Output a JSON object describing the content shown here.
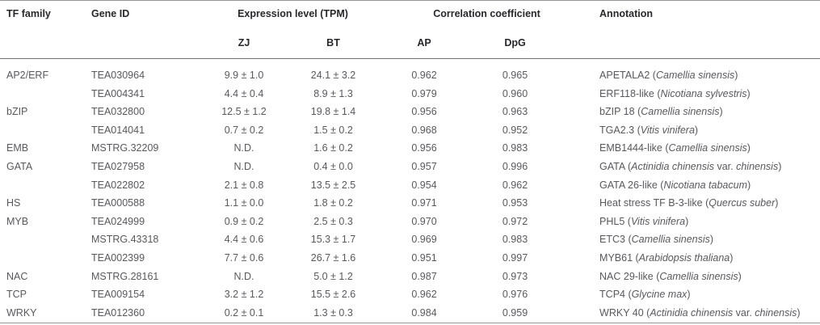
{
  "colors": {
    "background": "#ffffff",
    "header_text": "#28282b",
    "body_text": "#58595b",
    "rule_outer": "#939598",
    "rule_header": "#6f7173",
    "rule_group_underline": "#9b9da0"
  },
  "table": {
    "headers": {
      "tf_family": "TF family",
      "gene_id": "Gene ID",
      "expression_group": "Expression level (TPM)",
      "zj": "ZJ",
      "bt": "BT",
      "correlation_group": "Correlation coefficient",
      "ap": "AP",
      "dpg": "DpG",
      "annotation": "Annotation"
    },
    "rows": [
      {
        "family": "AP2/ERF",
        "gene": "TEA030964",
        "zj": "9.9 ± 1.0",
        "bt": "24.1 ± 3.2",
        "ap": "0.962",
        "dpg": "0.965",
        "annotation": [
          {
            "text": "APETALA2 (",
            "italic": false
          },
          {
            "text": "Camellia sinensis",
            "italic": true
          },
          {
            "text": ")",
            "italic": false
          }
        ]
      },
      {
        "family": "",
        "gene": "TEA004341",
        "zj": "4.4 ± 0.4",
        "bt": "8.9 ± 1.3",
        "ap": "0.979",
        "dpg": "0.960",
        "annotation": [
          {
            "text": "ERF118-like (",
            "italic": false
          },
          {
            "text": "Nicotiana sylvestris",
            "italic": true
          },
          {
            "text": ")",
            "italic": false
          }
        ]
      },
      {
        "family": "bZIP",
        "gene": "TEA032800",
        "zj": "12.5 ± 1.2",
        "bt": "19.8 ± 1.4",
        "ap": "0.956",
        "dpg": "0.963",
        "annotation": [
          {
            "text": "bZIP 18 (",
            "italic": false
          },
          {
            "text": "Camellia sinensis",
            "italic": true
          },
          {
            "text": ")",
            "italic": false
          }
        ]
      },
      {
        "family": "",
        "gene": "TEA014041",
        "zj": "0.7 ± 0.2",
        "bt": "1.5 ± 0.2",
        "ap": "0.968",
        "dpg": "0.952",
        "annotation": [
          {
            "text": "TGA2.3 (",
            "italic": false
          },
          {
            "text": "Vitis vinifera",
            "italic": true
          },
          {
            "text": ")",
            "italic": false
          }
        ]
      },
      {
        "family": "EMB",
        "gene": "MSTRG.32209",
        "zj": "N.D.",
        "bt": "1.6 ± 0.2",
        "ap": "0.956",
        "dpg": "0.983",
        "annotation": [
          {
            "text": "EMB1444-like (",
            "italic": false
          },
          {
            "text": "Camellia sinensis",
            "italic": true
          },
          {
            "text": ")",
            "italic": false
          }
        ]
      },
      {
        "family": "GATA",
        "gene": "TEA027958",
        "zj": "N.D.",
        "bt": "0.4 ± 0.0",
        "ap": "0.957",
        "dpg": "0.996",
        "annotation": [
          {
            "text": "GATA (",
            "italic": false
          },
          {
            "text": "Actinidia chinensis",
            "italic": true
          },
          {
            "text": " var. ",
            "italic": false
          },
          {
            "text": "chinensis",
            "italic": true
          },
          {
            "text": ")",
            "italic": false
          }
        ]
      },
      {
        "family": "",
        "gene": "TEA022802",
        "zj": "2.1 ± 0.8",
        "bt": "13.5 ± 2.5",
        "ap": "0.954",
        "dpg": "0.962",
        "annotation": [
          {
            "text": "GATA 26-like (",
            "italic": false
          },
          {
            "text": "Nicotiana tabacum",
            "italic": true
          },
          {
            "text": ")",
            "italic": false
          }
        ]
      },
      {
        "family": "HS",
        "gene": "TEA000588",
        "zj": "1.1 ± 0.0",
        "bt": "1.8 ± 0.2",
        "ap": "0.971",
        "dpg": "0.953",
        "annotation": [
          {
            "text": "Heat stress TF B-3-like (",
            "italic": false
          },
          {
            "text": "Quercus suber",
            "italic": true
          },
          {
            "text": ")",
            "italic": false
          }
        ]
      },
      {
        "family": "MYB",
        "gene": "TEA024999",
        "zj": "0.9 ± 0.2",
        "bt": "2.5 ± 0.3",
        "ap": "0.970",
        "dpg": "0.972",
        "annotation": [
          {
            "text": "PHL5 (",
            "italic": false
          },
          {
            "text": "Vitis vinifera",
            "italic": true
          },
          {
            "text": ")",
            "italic": false
          }
        ]
      },
      {
        "family": "",
        "gene": "MSTRG.43318",
        "zj": "4.4 ± 0.6",
        "bt": "15.3 ± 1.7",
        "ap": "0.969",
        "dpg": "0.983",
        "annotation": [
          {
            "text": "ETC3 (",
            "italic": false
          },
          {
            "text": "Camellia sinensis",
            "italic": true
          },
          {
            "text": ")",
            "italic": false
          }
        ]
      },
      {
        "family": "",
        "gene": "TEA002399",
        "zj": "7.7 ± 0.6",
        "bt": "26.7 ± 1.6",
        "ap": "0.951",
        "dpg": "0.997",
        "annotation": [
          {
            "text": "MYB61 (",
            "italic": false
          },
          {
            "text": "Arabidopsis thaliana",
            "italic": true
          },
          {
            "text": ")",
            "italic": false
          }
        ]
      },
      {
        "family": "NAC",
        "gene": "MSTRG.28161",
        "zj": "N.D.",
        "bt": "5.0 ± 1.2",
        "ap": "0.987",
        "dpg": "0.973",
        "annotation": [
          {
            "text": "NAC 29-like (",
            "italic": false
          },
          {
            "text": "Camellia sinensis",
            "italic": true
          },
          {
            "text": ")",
            "italic": false
          }
        ]
      },
      {
        "family": "TCP",
        "gene": "TEA009154",
        "zj": "3.2 ± 1.2",
        "bt": "15.5 ± 2.6",
        "ap": "0.962",
        "dpg": "0.976",
        "annotation": [
          {
            "text": "TCP4 (",
            "italic": false
          },
          {
            "text": "Glycine max",
            "italic": true
          },
          {
            "text": ")",
            "italic": false
          }
        ]
      },
      {
        "family": "WRKY",
        "gene": "TEA012360",
        "zj": "0.2 ± 0.1",
        "bt": "1.3 ± 0.3",
        "ap": "0.984",
        "dpg": "0.959",
        "annotation": [
          {
            "text": "WRKY 40 (",
            "italic": false
          },
          {
            "text": "Actinidia chinensis",
            "italic": true
          },
          {
            "text": " var. ",
            "italic": false
          },
          {
            "text": "chinensis",
            "italic": true
          },
          {
            "text": ")",
            "italic": false
          }
        ]
      }
    ]
  }
}
